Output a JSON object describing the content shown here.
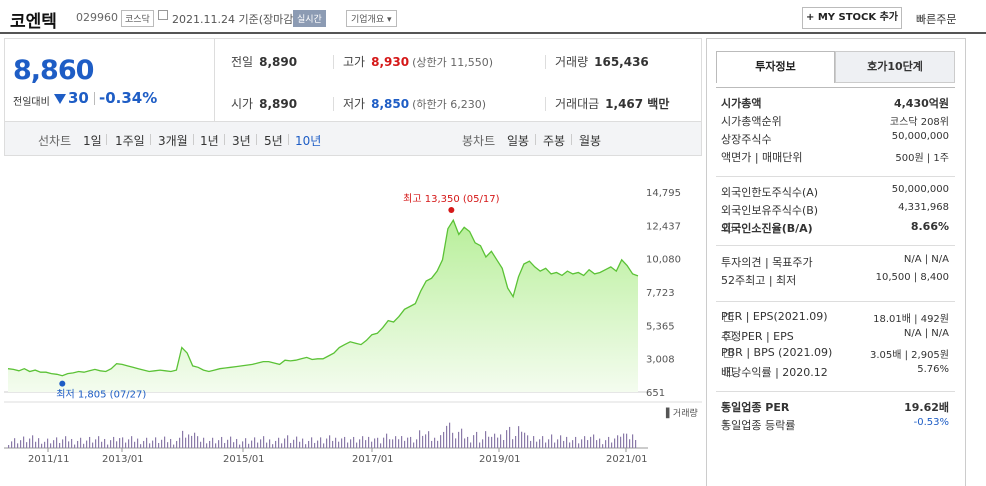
{
  "header": {
    "name": "코엔텍",
    "code": "029960",
    "market": "코스닥",
    "date": "2021.11.24 기준(장마감)",
    "realtime": "실시간",
    "overview": "기업개요 ▾",
    "my_stock": "+ MY STOCK 추가",
    "fast_order": "빠른주문"
  },
  "price": {
    "current": "8,860",
    "change_label": "전일대비",
    "change_value": "30",
    "change_pct": "-0.34%"
  },
  "stats": {
    "prev_label": "전일",
    "prev": "8,890",
    "high_label": "고가",
    "high": "8,930",
    "upper_limit": "(상한가 11,550)",
    "volume_label": "거래량",
    "volume": "165,436",
    "open_label": "시가",
    "open": "8,890",
    "low_label": "저가",
    "low": "8,850",
    "lower_limit": "(하한가 6,230)",
    "amount_label": "거래대금",
    "amount": "1,467 백만"
  },
  "tabs": {
    "line_label": "선차트",
    "periods": [
      "1일",
      "1주일",
      "3개월",
      "1년",
      "3년",
      "5년",
      "10년"
    ],
    "selected": "10년",
    "candle_label": "봉차트",
    "candle": [
      "일봉",
      "주봉",
      "월봉"
    ]
  },
  "chart_data": {
    "type": "area",
    "yticks": [
      "14,795",
      "12,437",
      "10,080",
      "7,723",
      "5,365",
      "3,008",
      "651"
    ],
    "ylim": [
      651,
      14795
    ],
    "xticks": [
      "2011/11",
      "2013/01",
      "2015/01",
      "2017/01",
      "2019/01",
      "2021/01"
    ],
    "high_annotation": "최고 13,350 (05/17)",
    "low_annotation": "최저 1,805 (07/27)",
    "volume_label": "거래량",
    "series": [
      {
        "values": [
          2300,
          2250,
          2150,
          2300,
          2100,
          2200,
          2050,
          2050,
          1950,
          1900,
          1805,
          1950,
          2000,
          2100,
          2050,
          2150,
          2250,
          2150,
          2100,
          2300,
          2650,
          2600,
          2500,
          2400,
          2300,
          2200,
          2100,
          2150,
          2200,
          2150,
          2100,
          2200,
          3800,
          3400,
          2500,
          2400,
          2200,
          2100,
          2200,
          2300,
          2350,
          2400,
          2450,
          2500,
          2550,
          2600,
          2700,
          2800,
          2800,
          2700,
          2600,
          2900,
          2850,
          2900,
          3000,
          3100,
          2950,
          3000,
          3000,
          3200,
          3400,
          3800,
          4000,
          4200,
          4100,
          4000,
          4300,
          4700,
          4800,
          5200,
          5700,
          5600,
          6000,
          6500,
          6700,
          6900,
          7800,
          8500,
          8700,
          9200,
          10000,
          12200,
          12800,
          11800,
          12300,
          12000,
          11200,
          11000,
          10200,
          10600,
          10000,
          9400,
          8000,
          7400,
          8800,
          9700,
          9900,
          9500,
          9200,
          9400,
          9000,
          9100,
          8900,
          9200,
          9000,
          9100,
          8900,
          9300,
          9000,
          9100,
          9300,
          9500,
          9200,
          10000,
          9600,
          9000,
          8860
        ]
      }
    ],
    "colors": {
      "line": "#5bc236",
      "fill_top": "#b8ef9a",
      "fill_bottom": "#f4fcef",
      "high_dot": "#d51818",
      "low_dot": "#1e5dc5"
    }
  },
  "info": {
    "tab_active": "투자정보",
    "tab_other": "호가10단계",
    "rows_1": [
      {
        "k": "시가총액",
        "v": "4,430억원"
      },
      {
        "k": "시가총액순위",
        "v": "코스닥 208위"
      },
      {
        "k": "상장주식수",
        "v": "50,000,000"
      },
      {
        "k": "액면가 | 매매단위",
        "v": "500원 | 1주"
      }
    ],
    "rows_2": [
      {
        "k": "외국인한도주식수(A)",
        "v": "50,000,000"
      },
      {
        "k": "외국인보유주식수(B)",
        "v": "4,331,968"
      },
      {
        "k": "외국인소진율(B/A)",
        "v": "8.66%"
      }
    ],
    "rows_3": [
      {
        "k": "투자의견 | 목표주가",
        "v": "N/A | N/A"
      },
      {
        "k": "52주최고 | 최저",
        "v": "10,500 | 8,400"
      }
    ],
    "rows_4": [
      {
        "k": "PER | EPS(2021.09)",
        "v": "18.01배 | 492원"
      },
      {
        "k": "추정PER | EPS",
        "v": "N/A | N/A"
      },
      {
        "k": "PBR | BPS (2021.09)",
        "v": "3.05배 | 2,905원"
      },
      {
        "k": "배당수익률 | 2020.12",
        "v": "5.76%"
      }
    ],
    "rows_5": [
      {
        "k": "동일업종 PER",
        "v": "19.62배"
      },
      {
        "k": "동일업종 등락률",
        "v": "-0.53%"
      }
    ]
  }
}
